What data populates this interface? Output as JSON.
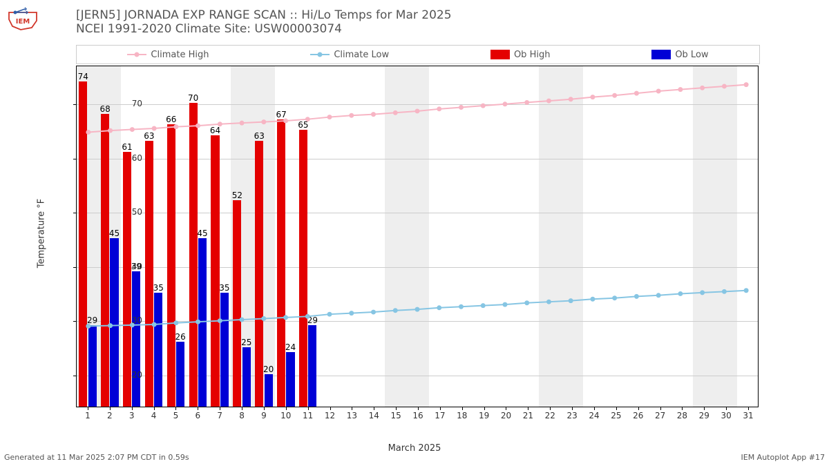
{
  "title": {
    "line1": "[JERN5] JORNADA EXP RANGE SCAN :: Hi/Lo Temps for Mar 2025",
    "line2": "NCEI 1991-2020 Climate Site: USW00003074"
  },
  "legend": {
    "climate_high": "Climate High",
    "climate_low": "Climate Low",
    "ob_high": "Ob High",
    "ob_low": "Ob Low"
  },
  "chart": {
    "type": "bar+line",
    "background_color": "#ffffff",
    "grid_color": "#cccccc",
    "weekend_color": "#eeeeee",
    "ylabel": "Temperature °F",
    "xlabel": "March 2025",
    "ylim": [
      14,
      77
    ],
    "yticks": [
      20,
      30,
      40,
      50,
      60,
      70
    ],
    "xlim": [
      0.5,
      31.5
    ],
    "days": [
      1,
      2,
      3,
      4,
      5,
      6,
      7,
      8,
      9,
      10,
      11,
      12,
      13,
      14,
      15,
      16,
      17,
      18,
      19,
      20,
      21,
      22,
      23,
      24,
      25,
      26,
      27,
      28,
      29,
      30,
      31
    ],
    "weekend_bands": [
      [
        0.5,
        2.5
      ],
      [
        7.5,
        9.5
      ],
      [
        14.5,
        16.5
      ],
      [
        21.5,
        23.5
      ],
      [
        28.5,
        30.5
      ]
    ],
    "bar_width": 0.38,
    "ob_high": {
      "color": "#e40000",
      "values": [
        74,
        68,
        61,
        63,
        66,
        70,
        64,
        52,
        63,
        67,
        65
      ]
    },
    "ob_low": {
      "color": "#0000d6",
      "values": [
        29,
        45,
        39,
        35,
        26,
        45,
        35,
        25,
        20,
        24,
        29
      ]
    },
    "climate_high": {
      "color": "#f7b5c4",
      "marker_color": "#f7b5c4",
      "line_width": 2,
      "values": [
        64.8,
        65.1,
        65.3,
        65.5,
        65.8,
        66.0,
        66.3,
        66.5,
        66.7,
        66.9,
        67.2,
        67.6,
        67.9,
        68.1,
        68.4,
        68.7,
        69.1,
        69.4,
        69.7,
        70.0,
        70.3,
        70.6,
        70.9,
        71.3,
        71.6,
        72.0,
        72.4,
        72.7,
        73.0,
        73.3,
        73.6
      ]
    },
    "climate_low": {
      "color": "#86c5e3",
      "marker_color": "#86c5e3",
      "line_width": 2,
      "values": [
        28.9,
        29.0,
        29.1,
        29.2,
        29.5,
        29.7,
        29.9,
        30.1,
        30.3,
        30.5,
        30.7,
        31.1,
        31.3,
        31.5,
        31.8,
        32.0,
        32.3,
        32.5,
        32.7,
        32.9,
        33.2,
        33.4,
        33.6,
        33.9,
        34.1,
        34.4,
        34.6,
        34.9,
        35.1,
        35.3,
        35.5
      ]
    },
    "label_fontsize": 12
  },
  "colors": {
    "iem_red": "#d13529",
    "iem_blue": "#2f5ea8"
  },
  "footer": {
    "left": "Generated at 11 Mar 2025 2:07 PM CDT in 0.59s",
    "right": "IEM Autoplot App #17"
  }
}
